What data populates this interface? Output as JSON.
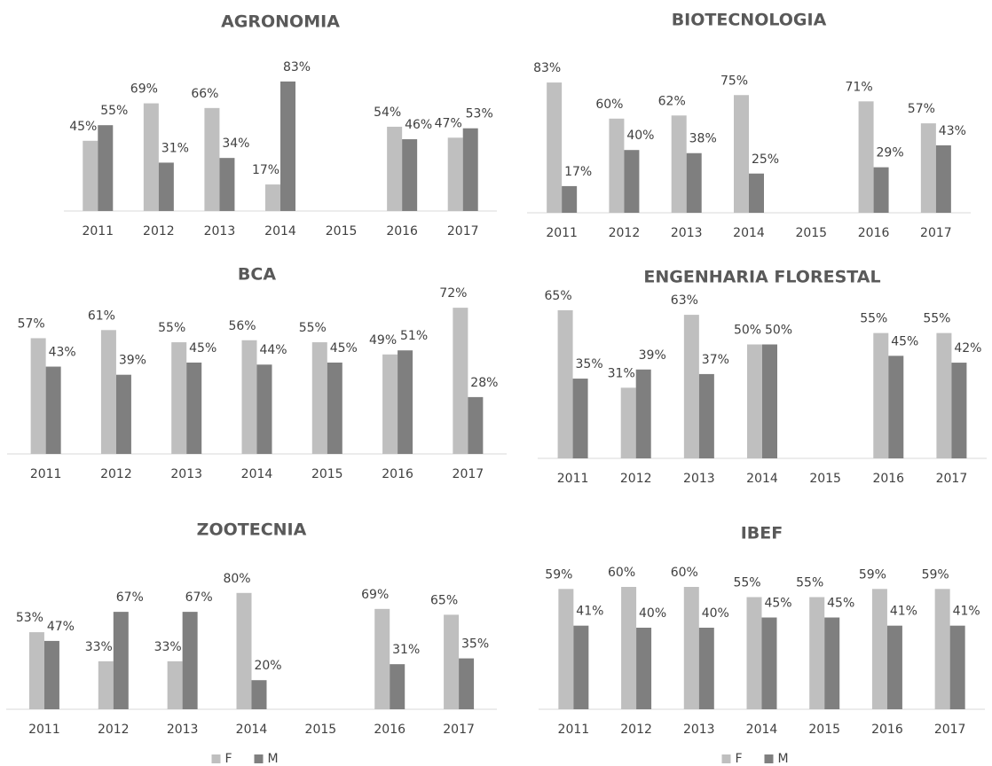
{
  "chart_data": [
    {
      "type": "bar",
      "title": "AGRONOMIA",
      "categories": [
        "2011",
        "2012",
        "2013",
        "2014",
        "2015",
        "2016",
        "2017"
      ],
      "series": [
        {
          "name": "F",
          "color": "#bfbfbf",
          "values": [
            45,
            69,
            66,
            17,
            null,
            54,
            47
          ],
          "value_labels": [
            "45%",
            "69%",
            "66%",
            "17%",
            null,
            "54%",
            "47%"
          ]
        },
        {
          "name": "M",
          "color": "#7f7f7f",
          "values": [
            55,
            31,
            34,
            83,
            null,
            46,
            53
          ],
          "value_labels": [
            "55%",
            "31%",
            "34%",
            "83%",
            null,
            "46%",
            "53%"
          ]
        }
      ]
    },
    {
      "type": "bar",
      "title": "BIOTECNOLOGIA",
      "categories": [
        "2011",
        "2012",
        "2013",
        "2014",
        "2015",
        "2016",
        "2017"
      ],
      "series": [
        {
          "name": "F",
          "color": "#bfbfbf",
          "values": [
            83,
            60,
            62,
            75,
            null,
            71,
            57
          ],
          "value_labels": [
            "83%",
            "60%",
            "62%",
            "75%",
            null,
            "71%",
            "57%"
          ]
        },
        {
          "name": "M",
          "color": "#7f7f7f",
          "values": [
            17,
            40,
            38,
            25,
            null,
            29,
            43
          ],
          "value_labels": [
            "17%",
            "40%",
            "38%",
            "25%",
            null,
            "29%",
            "43%"
          ]
        }
      ]
    },
    {
      "type": "bar",
      "title": "BCA",
      "categories": [
        "2011",
        "2012",
        "2013",
        "2014",
        "2015",
        "2016",
        "2017"
      ],
      "series": [
        {
          "name": "F",
          "color": "#bfbfbf",
          "values": [
            57,
            61,
            55,
            56,
            55,
            49,
            72
          ],
          "value_labels": [
            "57%",
            "61%",
            "55%",
            "56%",
            "55%",
            "49%",
            "72%"
          ]
        },
        {
          "name": "M",
          "color": "#7f7f7f",
          "values": [
            43,
            39,
            45,
            44,
            45,
            51,
            28
          ],
          "value_labels": [
            "43%",
            "39%",
            "45%",
            "44%",
            "45%",
            "51%",
            "28%"
          ]
        }
      ]
    },
    {
      "type": "bar",
      "title": "ENGENHARIA FLORESTAL",
      "categories": [
        "2011",
        "2012",
        "2013",
        "2014",
        "2015",
        "2016",
        "2017"
      ],
      "series": [
        {
          "name": "F",
          "color": "#bfbfbf",
          "values": [
            65,
            31,
            63,
            50,
            null,
            55,
            55
          ],
          "value_labels": [
            "65%",
            "31%",
            "63%",
            "50%",
            null,
            "55%",
            "55%"
          ]
        },
        {
          "name": "M",
          "color": "#7f7f7f",
          "values": [
            35,
            39,
            37,
            50,
            null,
            45,
            42
          ],
          "value_labels": [
            "35%",
            "39%",
            "37%",
            "50%",
            null,
            "45%",
            "42%"
          ]
        }
      ]
    },
    {
      "type": "bar",
      "title": "ZOOTECNIA",
      "legend": "bottom",
      "categories": [
        "2011",
        "2012",
        "2013",
        "2014",
        "2015",
        "2016",
        "2017"
      ],
      "series": [
        {
          "name": "F",
          "color": "#bfbfbf",
          "values": [
            53,
            33,
            33,
            80,
            null,
            69,
            65
          ],
          "value_labels": [
            "53%",
            "33%",
            "33%",
            "80%",
            null,
            "69%",
            "65%"
          ]
        },
        {
          "name": "M",
          "color": "#7f7f7f",
          "values": [
            47,
            67,
            67,
            20,
            null,
            31,
            35
          ],
          "value_labels": [
            "47%",
            "67%",
            "67%",
            "20%",
            null,
            "31%",
            "35%"
          ]
        }
      ]
    },
    {
      "type": "bar",
      "title": "IBEF",
      "legend": "bottom",
      "categories": [
        "2011",
        "2012",
        "2013",
        "2014",
        "2015",
        "2016",
        "2017"
      ],
      "series": [
        {
          "name": "F",
          "color": "#bfbfbf",
          "values": [
            59,
            60,
            60,
            55,
            55,
            59,
            59
          ],
          "value_labels": [
            "59%",
            "60%",
            "60%",
            "55%",
            "55%",
            "59%",
            "59%"
          ]
        },
        {
          "name": "M",
          "color": "#7f7f7f",
          "values": [
            41,
            40,
            40,
            45,
            45,
            41,
            41
          ],
          "value_labels": [
            "41%",
            "40%",
            "40%",
            "45%",
            "45%",
            "41%",
            "41%"
          ]
        }
      ]
    }
  ]
}
